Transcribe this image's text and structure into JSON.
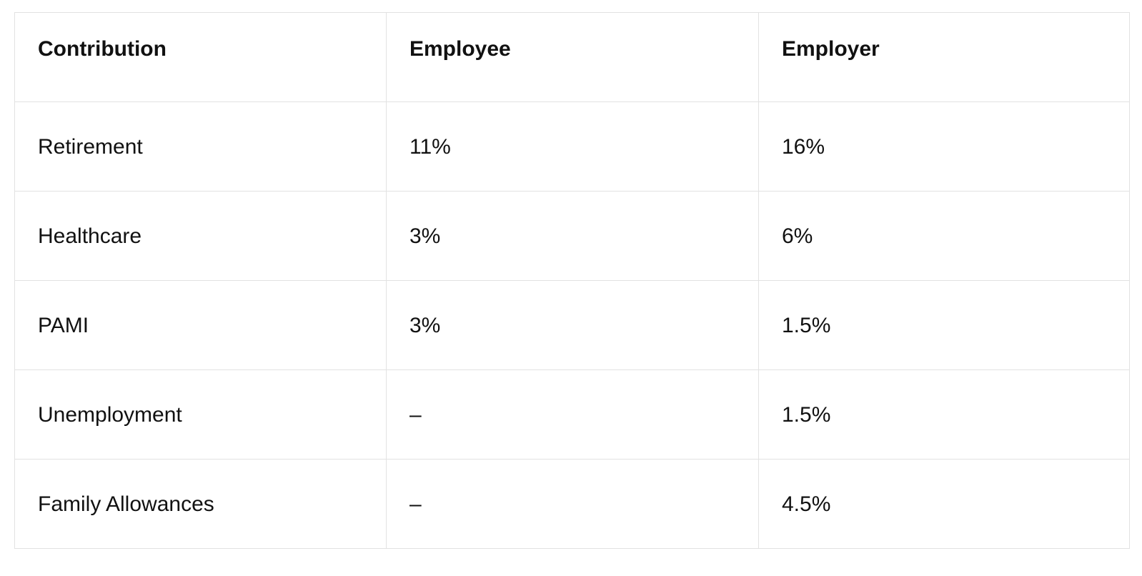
{
  "table": {
    "header": [
      "Contribution",
      "Employee",
      "Employer"
    ],
    "rows": [
      [
        "Retirement",
        "11%",
        "16%"
      ],
      [
        "Healthcare",
        "3%",
        "6%"
      ],
      [
        "PAMI",
        "3%",
        "1.5%"
      ],
      [
        "Unemployment",
        "–",
        "1.5%"
      ],
      [
        "Family Allowances",
        "–",
        "4.5%"
      ]
    ]
  }
}
